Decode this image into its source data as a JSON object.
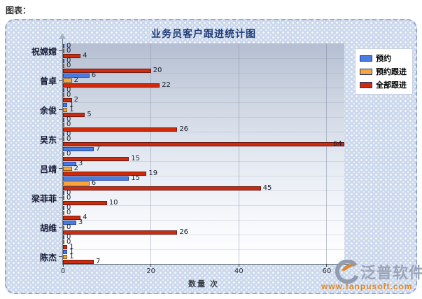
{
  "page": {
    "section_label": "图表："
  },
  "chart_data": {
    "type": "bar",
    "orientation": "horizontal",
    "title": "业务员客户跟进统计图",
    "xlabel": "数量 次",
    "xlim": [
      0,
      64
    ],
    "x_ticks": [
      0,
      20,
      40,
      60
    ],
    "grid": true,
    "legend_position": "top-right",
    "categories": [
      "祝嫦嫦",
      "",
      "曾卓",
      "",
      "余俊",
      "",
      "吴东",
      "",
      "吕靖",
      "",
      "梁菲菲",
      "",
      "胡维",
      "",
      "陈杰"
    ],
    "series": [
      {
        "name": "预约",
        "color": "#4a7de4",
        "border": "#2347a8",
        "values": [
          0,
          0,
          6,
          0,
          1,
          0,
          0,
          7,
          3,
          15,
          0,
          0,
          3,
          0,
          1
        ]
      },
      {
        "name": "预约跟进",
        "color": "#f9a53c",
        "border": "#8a5a14",
        "values": [
          0,
          0,
          2,
          0,
          1,
          0,
          0,
          0,
          2,
          6,
          0,
          0,
          0,
          0,
          1
        ]
      },
      {
        "name": "全部跟进",
        "color": "#ce2b0b",
        "border": "#6e1a14",
        "values": [
          4,
          20,
          22,
          2,
          5,
          26,
          64,
          15,
          19,
          45,
          10,
          4,
          26,
          1,
          7
        ]
      }
    ]
  },
  "watermark": {
    "brand": "泛普软件",
    "url": "www.fanpusoft.com"
  },
  "colors": {
    "title": "#1f3c77",
    "panel_bg": "#cbd8ec",
    "panel_border": "#92a9d4",
    "axis": "#6e7888"
  }
}
